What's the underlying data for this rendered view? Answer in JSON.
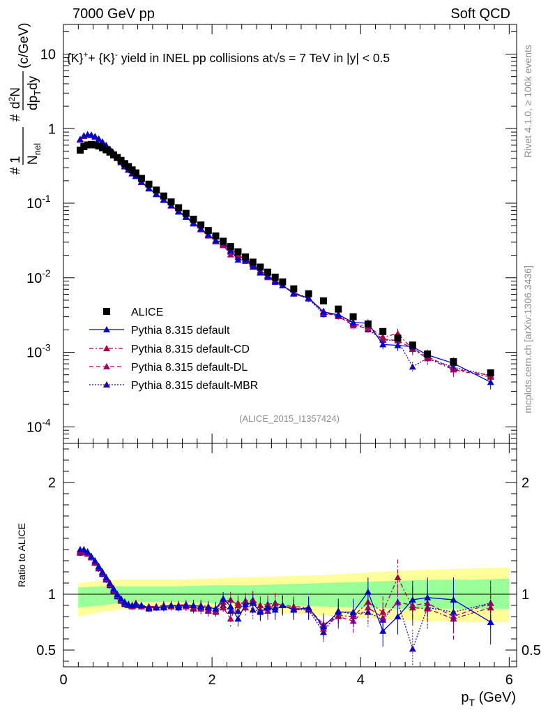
{
  "header": {
    "left": "7000 GeV pp",
    "right": "Soft QCD"
  },
  "side": {
    "rivet": "Rivet 4.1.0, ≥ 100k events",
    "mcplots": "mcplots.cern.ch [arXiv:1306.3436]"
  },
  "chart_data": {
    "type": "scatter",
    "title": "{K}⁺+ {K}⁻ yield in INEL pp collisions at √s = 7 TeV in |y| < 0.5",
    "title_parts": {
      "pre": "{K}",
      "sup1": "+",
      "mid": "+ {K}",
      "sup2": "-",
      "post": " yield in INEL pp collisions at",
      "sqrt": "√s",
      "tail": " =  7 TeV in |y| < 0.5"
    },
    "reference_label": "(ALICE_2015_I1357424)",
    "xlabel": "p_T (GeV)",
    "xlabel_parts": {
      "main": "p",
      "sub": "T",
      "unit": " (GeV)"
    },
    "ylabel": "#frac{1}{N_nel} #frac{d²N}{dp_T dy} (c/GeV)",
    "ylabel_parts": {
      "hash": "#",
      "one": "1",
      "N": "N",
      "nsub": "nel",
      "dN": "d",
      "dsup": "2",
      "dN2": "N",
      "dp": "dp",
      "dpsub": "T",
      "dy": "dy",
      "unit": " (c/GeV)"
    },
    "ratio_ylabel": "Ratio to ALICE",
    "xlim": [
      0,
      6.1
    ],
    "ylim_log": [
      6e-05,
      25
    ],
    "ratio_ylim": [
      0.35,
      2.35
    ],
    "x_ticks": [
      "0",
      "2",
      "4",
      "6"
    ],
    "y_tick_labels": [
      {
        "base": "10",
        "exp": "-4",
        "value": 0.0001
      },
      {
        "base": "10",
        "exp": "-3",
        "value": 0.001
      },
      {
        "base": "10",
        "exp": "-2",
        "value": 0.01
      },
      {
        "base": "10",
        "exp": "-1",
        "value": 0.1
      },
      {
        "base": "1",
        "exp": "",
        "value": 1
      },
      {
        "base": "10",
        "exp": "",
        "value": 10
      }
    ],
    "ratio_ticks": [
      "0.5",
      "1",
      "2"
    ],
    "x": [
      0.225,
      0.275,
      0.325,
      0.375,
      0.425,
      0.475,
      0.525,
      0.575,
      0.625,
      0.675,
      0.725,
      0.775,
      0.825,
      0.875,
      0.925,
      0.975,
      1.05,
      1.15,
      1.25,
      1.35,
      1.45,
      1.55,
      1.65,
      1.75,
      1.85,
      1.95,
      2.05,
      2.15,
      2.25,
      2.35,
      2.45,
      2.55,
      2.65,
      2.75,
      2.85,
      2.95,
      3.1,
      3.3,
      3.5,
      3.7,
      3.9,
      4.1,
      4.3,
      4.5,
      4.7,
      4.9,
      5.25,
      5.75
    ],
    "series": [
      {
        "name": "ALICE",
        "style": "data",
        "color": "#000000",
        "values": [
          0.515,
          0.575,
          0.605,
          0.615,
          0.605,
          0.585,
          0.555,
          0.52,
          0.485,
          0.445,
          0.41,
          0.375,
          0.34,
          0.31,
          0.28,
          0.255,
          0.215,
          0.18,
          0.15,
          0.125,
          0.104,
          0.087,
          0.073,
          0.061,
          0.051,
          0.043,
          0.0364,
          0.0309,
          0.0262,
          0.0223,
          0.019,
          0.0162,
          0.0139,
          0.0119,
          0.0102,
          0.0088,
          0.0071,
          0.0061,
          0.0049,
          0.0038,
          0.003,
          0.0024,
          0.0019,
          0.00155,
          0.00125,
          0.00095,
          0.00075,
          0.00053
        ]
      },
      {
        "name": "Pythia 8.315 default",
        "style": "solid",
        "color": "#0000cc",
        "ratio": [
          1.4,
          1.4,
          1.38,
          1.34,
          1.3,
          1.25,
          1.2,
          1.15,
          1.1,
          1.05,
          1.0,
          0.96,
          0.93,
          0.91,
          0.9,
          0.91,
          0.9,
          0.88,
          0.88,
          0.89,
          0.9,
          0.89,
          0.9,
          0.9,
          0.89,
          0.88,
          0.87,
          0.96,
          0.89,
          0.78,
          0.91,
          0.92,
          0.84,
          0.88,
          0.86,
          0.9,
          0.86,
          0.88,
          0.71,
          0.84,
          0.84,
          1.02,
          0.67,
          0.8,
          0.95,
          0.97,
          0.95,
          0.75
        ],
        "errs": [
          0.03,
          0.03,
          0.03,
          0.03,
          0.03,
          0.03,
          0.03,
          0.03,
          0.03,
          0.03,
          0.03,
          0.03,
          0.03,
          0.03,
          0.03,
          0.03,
          0.03,
          0.03,
          0.03,
          0.04,
          0.04,
          0.04,
          0.04,
          0.05,
          0.05,
          0.05,
          0.06,
          0.06,
          0.07,
          0.07,
          0.07,
          0.08,
          0.08,
          0.08,
          0.09,
          0.09,
          0.09,
          0.1,
          0.1,
          0.11,
          0.12,
          0.13,
          0.14,
          0.16,
          0.17,
          0.18,
          0.2,
          0.2
        ]
      },
      {
        "name": "Pythia 8.315 default-CD",
        "style": "dashdot",
        "color": "#aa0044",
        "ratio": [
          1.38,
          1.39,
          1.37,
          1.33,
          1.29,
          1.24,
          1.2,
          1.15,
          1.1,
          1.05,
          1.0,
          0.96,
          0.93,
          0.91,
          0.9,
          0.92,
          0.9,
          0.89,
          0.89,
          0.9,
          0.89,
          0.9,
          0.91,
          0.88,
          0.9,
          0.89,
          0.87,
          0.93,
          0.95,
          0.9,
          0.94,
          0.95,
          0.9,
          0.91,
          0.92,
          0.9,
          0.89,
          0.88,
          0.69,
          0.81,
          0.8,
          0.93,
          0.84,
          1.15,
          0.88,
          0.87,
          0.78,
          0.88
        ],
        "errs": [
          0.03,
          0.03,
          0.03,
          0.03,
          0.03,
          0.03,
          0.03,
          0.03,
          0.03,
          0.03,
          0.03,
          0.03,
          0.03,
          0.03,
          0.03,
          0.03,
          0.03,
          0.03,
          0.03,
          0.04,
          0.04,
          0.04,
          0.04,
          0.05,
          0.05,
          0.05,
          0.06,
          0.06,
          0.07,
          0.07,
          0.07,
          0.08,
          0.08,
          0.08,
          0.09,
          0.09,
          0.09,
          0.1,
          0.1,
          0.11,
          0.12,
          0.13,
          0.14,
          0.16,
          0.17,
          0.18,
          0.2,
          0.2
        ]
      },
      {
        "name": "Pythia 8.315 default-DL",
        "style": "dashed",
        "color": "#aa0066",
        "ratio": [
          1.39,
          1.38,
          1.36,
          1.33,
          1.28,
          1.24,
          1.19,
          1.14,
          1.09,
          1.04,
          0.99,
          0.95,
          0.92,
          0.9,
          0.89,
          0.9,
          0.89,
          0.88,
          0.88,
          0.89,
          0.9,
          0.9,
          0.89,
          0.88,
          0.87,
          0.85,
          0.84,
          0.88,
          0.78,
          0.92,
          0.88,
          0.94,
          0.86,
          0.85,
          0.92,
          0.9,
          0.87,
          0.87,
          0.73,
          0.8,
          0.76,
          0.88,
          0.79,
          0.93,
          0.9,
          0.92,
          0.8,
          0.92
        ],
        "errs": [
          0.03,
          0.03,
          0.03,
          0.03,
          0.03,
          0.03,
          0.03,
          0.03,
          0.03,
          0.03,
          0.03,
          0.03,
          0.03,
          0.03,
          0.03,
          0.03,
          0.03,
          0.03,
          0.03,
          0.04,
          0.04,
          0.04,
          0.04,
          0.05,
          0.05,
          0.05,
          0.06,
          0.06,
          0.07,
          0.07,
          0.07,
          0.08,
          0.08,
          0.08,
          0.09,
          0.09,
          0.09,
          0.1,
          0.1,
          0.11,
          0.12,
          0.13,
          0.14,
          0.16,
          0.17,
          0.18,
          0.2,
          0.2
        ]
      },
      {
        "name": "Pythia 8.315 default-MBR",
        "style": "dotted",
        "color": "#2200aa",
        "ratio": [
          1.37,
          1.38,
          1.37,
          1.33,
          1.28,
          1.23,
          1.18,
          1.13,
          1.08,
          1.03,
          0.98,
          0.94,
          0.91,
          0.9,
          0.89,
          0.9,
          0.89,
          0.87,
          0.88,
          0.88,
          0.89,
          0.88,
          0.89,
          0.87,
          0.88,
          0.86,
          0.85,
          0.9,
          0.85,
          0.85,
          0.94,
          0.86,
          0.85,
          0.89,
          0.88,
          0.9,
          0.86,
          0.86,
          0.66,
          0.85,
          0.82,
          0.84,
          0.77,
          0.93,
          0.51,
          0.88,
          0.84,
          0.92
        ],
        "errs": [
          0.03,
          0.03,
          0.03,
          0.03,
          0.03,
          0.03,
          0.03,
          0.03,
          0.03,
          0.03,
          0.03,
          0.03,
          0.03,
          0.03,
          0.03,
          0.03,
          0.03,
          0.03,
          0.03,
          0.04,
          0.04,
          0.04,
          0.04,
          0.05,
          0.05,
          0.05,
          0.06,
          0.06,
          0.07,
          0.07,
          0.07,
          0.08,
          0.08,
          0.08,
          0.09,
          0.09,
          0.09,
          0.1,
          0.1,
          0.11,
          0.12,
          0.13,
          0.14,
          0.16,
          0.17,
          0.18,
          0.2,
          0.2
        ]
      }
    ],
    "bands": {
      "x": [
        0.2,
        0.5,
        0.75,
        1.0,
        1.5,
        2.0,
        2.5,
        3.0,
        3.5,
        4.0,
        4.5,
        5.0,
        5.5,
        6.0
      ],
      "yellow_lo": [
        0.8,
        0.84,
        0.86,
        0.87,
        0.87,
        0.86,
        0.85,
        0.83,
        0.81,
        0.79,
        0.77,
        0.76,
        0.75,
        0.75
      ],
      "yellow_hi": [
        1.1,
        1.12,
        1.13,
        1.13,
        1.13,
        1.14,
        1.15,
        1.16,
        1.17,
        1.19,
        1.21,
        1.22,
        1.23,
        1.24
      ],
      "green_lo": [
        0.88,
        0.9,
        0.92,
        0.93,
        0.93,
        0.92,
        0.91,
        0.9,
        0.89,
        0.88,
        0.87,
        0.87,
        0.87,
        0.87
      ],
      "green_hi": [
        1.06,
        1.07,
        1.07,
        1.07,
        1.07,
        1.08,
        1.08,
        1.09,
        1.1,
        1.11,
        1.12,
        1.13,
        1.13,
        1.14
      ]
    },
    "legend_position": "lower-left"
  }
}
